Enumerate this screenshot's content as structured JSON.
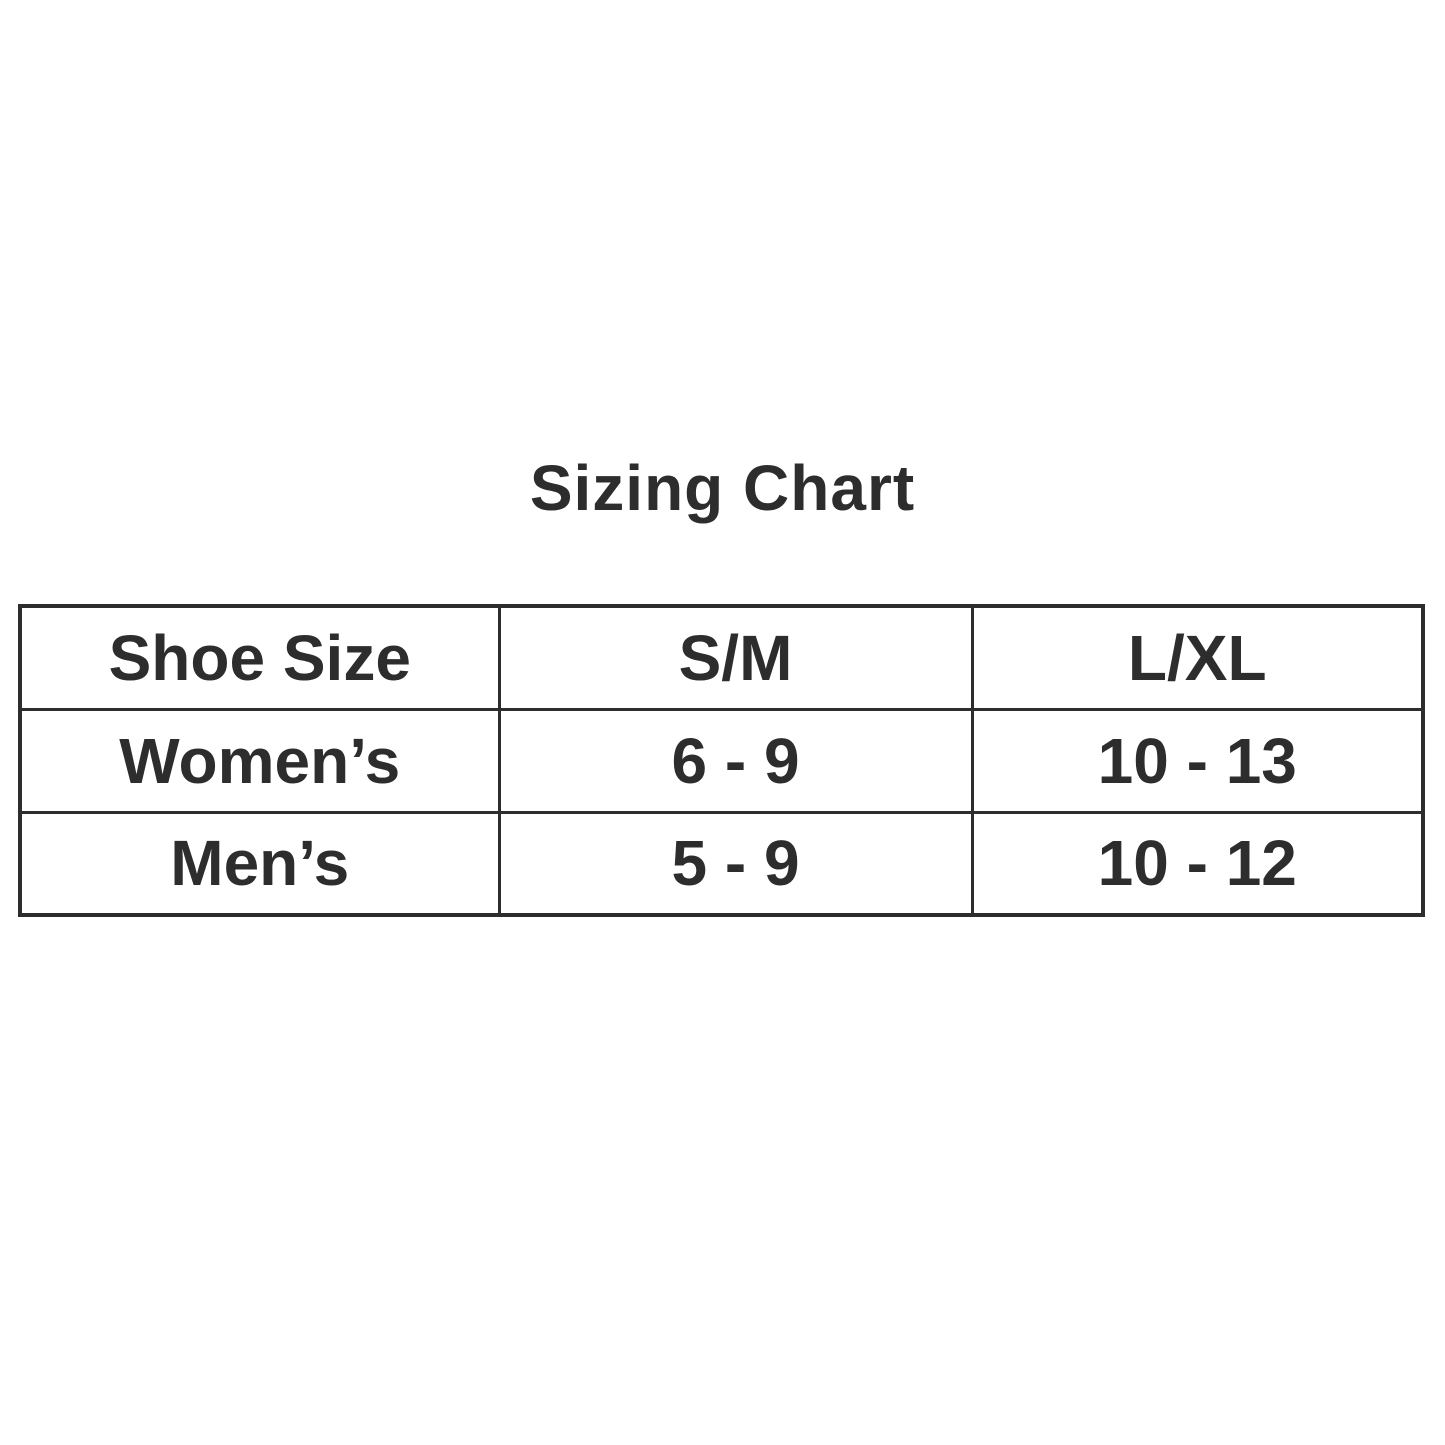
{
  "colors": {
    "background": "#ffffff",
    "text": "#2d2d2d",
    "border": "#2d2d2d"
  },
  "chart_data": {
    "type": "table",
    "title": "Sizing Chart",
    "columns": [
      "Shoe Size",
      "S/M",
      "L/XL"
    ],
    "rows": [
      [
        "Women’s",
        "6 - 9",
        "10 - 13"
      ],
      [
        "Men’s",
        "5 - 9",
        "10 - 12"
      ]
    ]
  }
}
